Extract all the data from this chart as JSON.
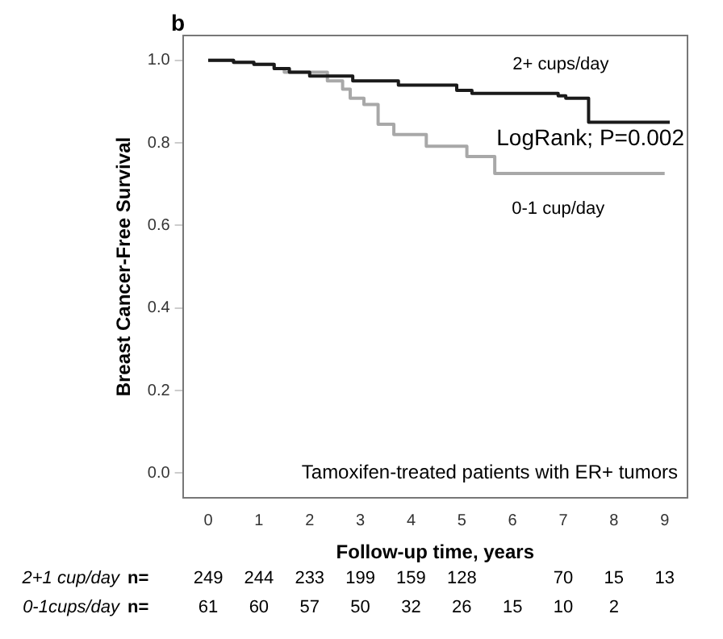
{
  "chart_data": {
    "type": "step",
    "title": "b",
    "xlabel": "Follow-up time, years",
    "ylabel": "Breast Cancer-Free Survival",
    "xlim": [
      -0.5,
      9.45
    ],
    "xticks": [
      0,
      1,
      2,
      3,
      4,
      5,
      6,
      7,
      8,
      9
    ],
    "ylim": [
      -0.06,
      1.06
    ],
    "yticks": [
      {
        "value": 0,
        "label": "0.0"
      },
      {
        "value": 0.2,
        "label": "0.2"
      },
      {
        "value": 0.4,
        "label": "0.4"
      },
      {
        "value": 0.6,
        "label": "0.6"
      },
      {
        "value": 0.8,
        "label": "0.8"
      },
      {
        "value": 1,
        "label": "1.0"
      }
    ],
    "grid": false,
    "legend": false,
    "marker": "none",
    "line_style": "solid",
    "series": [
      {
        "name": "2+ cups/day",
        "color": "#1a1a1a",
        "x": [
          0,
          0.5,
          0.9,
          1.3,
          1.6,
          2.0,
          2.85,
          3.75,
          4.9,
          5.2,
          6.9,
          7.05,
          7.5,
          9.1
        ],
        "values": [
          1.0,
          0.995,
          0.99,
          0.98,
          0.971,
          0.962,
          0.95,
          0.94,
          0.927,
          0.92,
          0.914,
          0.908,
          0.85,
          0.85
        ]
      },
      {
        "name": "0-1 cup/day",
        "color": "#a8a8a8",
        "x": [
          0,
          0.5,
          0.9,
          1.3,
          1.5,
          2.35,
          2.65,
          2.8,
          3.07,
          3.35,
          3.66,
          4.3,
          5.1,
          5.65,
          9.0
        ],
        "values": [
          1.0,
          0.995,
          0.99,
          0.98,
          0.971,
          0.95,
          0.93,
          0.908,
          0.893,
          0.845,
          0.82,
          0.792,
          0.767,
          0.726,
          0.726
        ]
      }
    ],
    "annotations": [
      "LogRank; P=0.002",
      "Tamoxifen-treated patients with ER+ tumors",
      "2+1 cup/day",
      "n=",
      "249",
      "244",
      "233",
      "199",
      "159",
      "128",
      null,
      "70",
      "15",
      "13",
      "0-1cups/day",
      "n=",
      "61",
      "60",
      "57",
      "50",
      "32",
      "26",
      "15",
      "10",
      "2"
    ]
  }
}
